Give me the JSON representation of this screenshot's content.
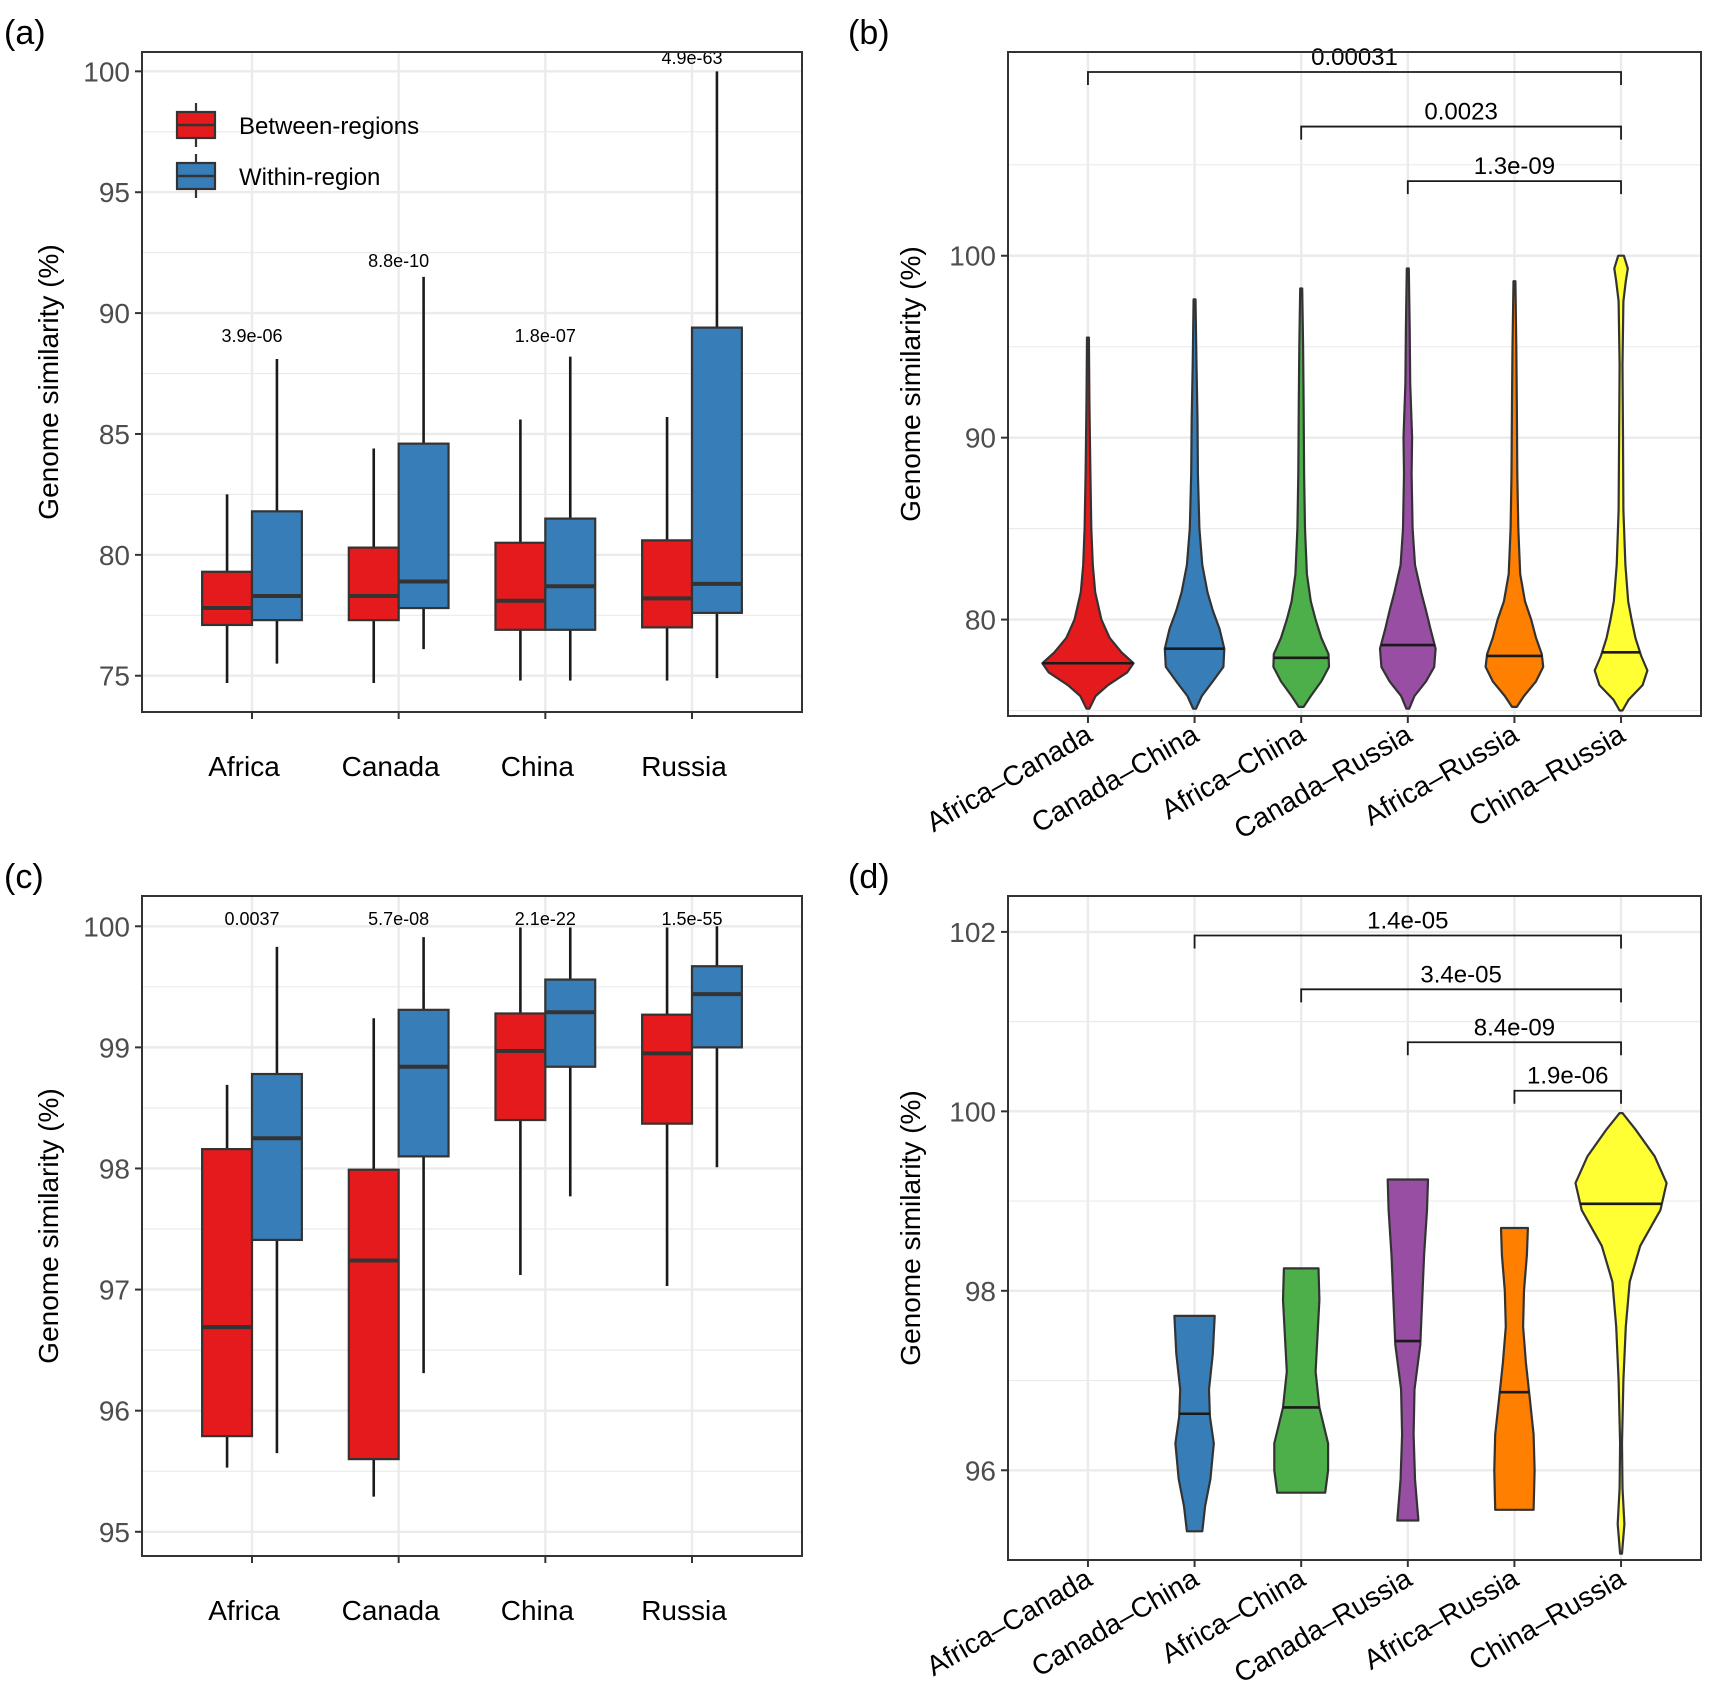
{
  "figure": {
    "colors": {
      "between": "#E41A1C",
      "within": "#377EB8",
      "violins": [
        "#E41A1C",
        "#377EB8",
        "#4DAF4A",
        "#984EA3",
        "#FF7F00",
        "#FFFF33"
      ],
      "grid": "#EBEBEB",
      "axis": "#333333"
    }
  },
  "chart_data": [
    {
      "panel": "(a)",
      "type": "box",
      "ylabel": "Genome similarity (%)",
      "ylim": [
        73.5,
        100.8
      ],
      "yticks": [
        75,
        80,
        85,
        90,
        95,
        100
      ],
      "categories": [
        "Africa",
        "Canada",
        "China",
        "Russia"
      ],
      "legend": {
        "placement": "top-left",
        "entries": [
          "Between-regions",
          "Within-region"
        ]
      },
      "series": [
        {
          "name": "Between-regions",
          "boxes": [
            {
              "min": 74.7,
              "q1": 77.1,
              "median": 77.8,
              "q3": 79.3,
              "max": 82.5
            },
            {
              "min": 74.7,
              "q1": 77.3,
              "median": 78.3,
              "q3": 80.3,
              "max": 84.4
            },
            {
              "min": 74.8,
              "q1": 76.9,
              "median": 78.1,
              "q3": 80.5,
              "max": 85.6
            },
            {
              "min": 74.8,
              "q1": 77.0,
              "median": 78.2,
              "q3": 80.6,
              "max": 85.7
            }
          ]
        },
        {
          "name": "Within-region",
          "boxes": [
            {
              "min": 75.5,
              "q1": 77.3,
              "median": 78.3,
              "q3": 81.8,
              "max": 88.1
            },
            {
              "min": 76.1,
              "q1": 77.8,
              "median": 78.9,
              "q3": 84.6,
              "max": 91.5
            },
            {
              "min": 74.8,
              "q1": 76.9,
              "median": 78.7,
              "q3": 81.5,
              "max": 88.2
            },
            {
              "min": 74.9,
              "q1": 77.6,
              "median": 78.8,
              "q3": 89.4,
              "max": 100.0
            }
          ]
        }
      ],
      "pvalues": [
        {
          "label": "3.9e-06",
          "y": 89.1
        },
        {
          "label": "8.8e-10",
          "y": 92.2
        },
        {
          "label": "1.8e-07",
          "y": 89.1
        },
        {
          "label": "4.9e-63",
          "y": 100.6
        }
      ]
    },
    {
      "panel": "(b)",
      "type": "violin",
      "ylabel": "Genome similarity (%)",
      "ylim": [
        74.7,
        111.2
      ],
      "yticks": [
        80,
        90,
        100
      ],
      "categories": [
        "Africa–Canada",
        "Canada–China",
        "Africa–China",
        "Canada–Russia",
        "Africa–Russia",
        "China–Russia"
      ],
      "violins": [
        {
          "min": 75.1,
          "max": 95.5,
          "median": 77.6,
          "profile": [
            [
              75.1,
              0.03
            ],
            [
              75.8,
              0.16
            ],
            [
              76.4,
              0.42
            ],
            [
              77.1,
              0.82
            ],
            [
              77.6,
              0.95
            ],
            [
              78.2,
              0.7
            ],
            [
              79.0,
              0.45
            ],
            [
              80.0,
              0.28
            ],
            [
              81.5,
              0.15
            ],
            [
              83.0,
              0.1
            ],
            [
              85.0,
              0.07
            ],
            [
              88.0,
              0.05
            ],
            [
              92.0,
              0.03
            ],
            [
              95.5,
              0.02
            ]
          ]
        },
        {
          "min": 75.1,
          "max": 97.6,
          "median": 78.4,
          "profile": [
            [
              75.1,
              0.03
            ],
            [
              75.8,
              0.15
            ],
            [
              76.6,
              0.38
            ],
            [
              77.4,
              0.6
            ],
            [
              78.4,
              0.62
            ],
            [
              79.5,
              0.52
            ],
            [
              80.5,
              0.38
            ],
            [
              81.5,
              0.27
            ],
            [
              83.0,
              0.16
            ],
            [
              85.0,
              0.1
            ],
            [
              88.0,
              0.07
            ],
            [
              91.0,
              0.06
            ],
            [
              94.0,
              0.04
            ],
            [
              97.6,
              0.02
            ]
          ]
        },
        {
          "min": 75.2,
          "max": 98.2,
          "median": 77.9,
          "profile": [
            [
              75.2,
              0.05
            ],
            [
              75.8,
              0.2
            ],
            [
              76.6,
              0.42
            ],
            [
              77.4,
              0.58
            ],
            [
              78.1,
              0.57
            ],
            [
              79.0,
              0.42
            ],
            [
              80.0,
              0.3
            ],
            [
              81.0,
              0.2
            ],
            [
              82.5,
              0.12
            ],
            [
              85.0,
              0.08
            ],
            [
              88.0,
              0.06
            ],
            [
              92.0,
              0.05
            ],
            [
              95.0,
              0.04
            ],
            [
              98.2,
              0.02
            ]
          ]
        },
        {
          "min": 75.1,
          "max": 99.3,
          "median": 78.6,
          "profile": [
            [
              75.1,
              0.03
            ],
            [
              75.8,
              0.14
            ],
            [
              76.6,
              0.38
            ],
            [
              77.4,
              0.55
            ],
            [
              78.4,
              0.58
            ],
            [
              79.5,
              0.47
            ],
            [
              80.5,
              0.38
            ],
            [
              81.5,
              0.28
            ],
            [
              83.0,
              0.15
            ],
            [
              85.0,
              0.1
            ],
            [
              88.0,
              0.08
            ],
            [
              90.0,
              0.09
            ],
            [
              93.0,
              0.05
            ],
            [
              96.0,
              0.04
            ],
            [
              99.3,
              0.02
            ]
          ]
        },
        {
          "min": 75.2,
          "max": 98.6,
          "median": 78.0,
          "profile": [
            [
              75.2,
              0.05
            ],
            [
              75.8,
              0.2
            ],
            [
              76.6,
              0.45
            ],
            [
              77.4,
              0.6
            ],
            [
              78.1,
              0.57
            ],
            [
              79.0,
              0.45
            ],
            [
              80.0,
              0.35
            ],
            [
              81.0,
              0.22
            ],
            [
              82.5,
              0.12
            ],
            [
              85.0,
              0.08
            ],
            [
              88.0,
              0.06
            ],
            [
              92.0,
              0.05
            ],
            [
              95.0,
              0.04
            ],
            [
              98.6,
              0.02
            ]
          ]
        },
        {
          "min": 75.0,
          "max": 100.0,
          "median": 78.2,
          "profile": [
            [
              75.0,
              0.03
            ],
            [
              75.6,
              0.16
            ],
            [
              76.4,
              0.45
            ],
            [
              77.2,
              0.55
            ],
            [
              78.0,
              0.42
            ],
            [
              79.0,
              0.3
            ],
            [
              80.0,
              0.22
            ],
            [
              81.0,
              0.15
            ],
            [
              83.0,
              0.09
            ],
            [
              86.0,
              0.05
            ],
            [
              90.0,
              0.04
            ],
            [
              94.0,
              0.03
            ],
            [
              97.5,
              0.05
            ],
            [
              98.6,
              0.1
            ],
            [
              99.3,
              0.14
            ],
            [
              100.0,
              0.06
            ]
          ]
        }
      ],
      "comparisons": [
        {
          "from": 0,
          "to": 5,
          "label": "0.00031",
          "y": 110.1
        },
        {
          "from": 2,
          "to": 5,
          "label": "0.0023",
          "y": 107.1
        },
        {
          "from": 3,
          "to": 5,
          "label": "1.3e-09",
          "y": 104.1
        }
      ]
    },
    {
      "panel": "(c)",
      "type": "box",
      "ylabel": "Genome similarity (%)",
      "ylim": [
        94.8,
        100.25
      ],
      "yticks": [
        95,
        96,
        97,
        98,
        99,
        100
      ],
      "categories": [
        "Africa",
        "Canada",
        "China",
        "Russia"
      ],
      "series": [
        {
          "name": "Between-regions",
          "boxes": [
            {
              "min": 95.53,
              "q1": 95.79,
              "median": 96.69,
              "q3": 98.16,
              "max": 98.69
            },
            {
              "min": 95.29,
              "q1": 95.6,
              "median": 97.24,
              "q3": 97.99,
              "max": 99.24
            },
            {
              "min": 97.12,
              "q1": 98.4,
              "median": 98.97,
              "q3": 99.28,
              "max": 99.99
            },
            {
              "min": 97.03,
              "q1": 98.37,
              "median": 98.95,
              "q3": 99.27,
              "max": 99.99
            }
          ]
        },
        {
          "name": "Within-region",
          "boxes": [
            {
              "min": 95.65,
              "q1": 97.41,
              "median": 98.25,
              "q3": 98.78,
              "max": 99.83
            },
            {
              "min": 96.31,
              "q1": 98.1,
              "median": 98.84,
              "q3": 99.31,
              "max": 99.91
            },
            {
              "min": 97.77,
              "q1": 98.84,
              "median": 99.29,
              "q3": 99.56,
              "max": 99.99
            },
            {
              "min": 98.01,
              "q1": 99.0,
              "median": 99.44,
              "q3": 99.67,
              "max": 100.0
            }
          ]
        }
      ],
      "pvalues": [
        {
          "label": "0.0037",
          "y": 100.07
        },
        {
          "label": "5.7e-08",
          "y": 100.07
        },
        {
          "label": "2.1e-22",
          "y": 100.07
        },
        {
          "label": "1.5e-55",
          "y": 100.07
        }
      ]
    },
    {
      "panel": "(d)",
      "type": "violin",
      "ylabel": "Genome similarity (%)",
      "ylim": [
        95.0,
        102.4
      ],
      "yticks": [
        96,
        98,
        100,
        102
      ],
      "categories": [
        "Africa–Canada",
        "Canada–China",
        "Africa–China",
        "Canada–Russia",
        "Africa–Russia",
        "China–Russia"
      ],
      "violins": [
        null,
        {
          "min": 95.32,
          "max": 97.72,
          "median": 96.63,
          "profile": [
            [
              95.32,
              0.16
            ],
            [
              95.6,
              0.22
            ],
            [
              95.9,
              0.33
            ],
            [
              96.3,
              0.4
            ],
            [
              96.6,
              0.32
            ],
            [
              96.9,
              0.3
            ],
            [
              97.3,
              0.38
            ],
            [
              97.72,
              0.42
            ]
          ]
        },
        {
          "min": 95.75,
          "max": 98.25,
          "median": 96.7,
          "profile": [
            [
              95.75,
              0.5
            ],
            [
              96.0,
              0.56
            ],
            [
              96.3,
              0.56
            ],
            [
              96.7,
              0.38
            ],
            [
              97.1,
              0.3
            ],
            [
              97.5,
              0.34
            ],
            [
              97.9,
              0.38
            ],
            [
              98.25,
              0.36
            ]
          ]
        },
        {
          "min": 95.44,
          "max": 99.24,
          "median": 97.44,
          "profile": [
            [
              95.44,
              0.22
            ],
            [
              95.9,
              0.15
            ],
            [
              96.4,
              0.12
            ],
            [
              96.9,
              0.14
            ],
            [
              97.4,
              0.26
            ],
            [
              97.9,
              0.3
            ],
            [
              98.4,
              0.34
            ],
            [
              98.9,
              0.4
            ],
            [
              99.24,
              0.42
            ]
          ]
        },
        {
          "min": 95.56,
          "max": 98.7,
          "median": 96.87,
          "profile": [
            [
              95.56,
              0.4
            ],
            [
              96.0,
              0.42
            ],
            [
              96.4,
              0.4
            ],
            [
              96.8,
              0.32
            ],
            [
              97.2,
              0.24
            ],
            [
              97.6,
              0.18
            ],
            [
              98.0,
              0.2
            ],
            [
              98.4,
              0.26
            ],
            [
              98.7,
              0.28
            ]
          ]
        },
        {
          "min": 95.07,
          "max": 99.98,
          "median": 98.97,
          "profile": [
            [
              95.07,
              0.02
            ],
            [
              95.4,
              0.07
            ],
            [
              95.8,
              0.03
            ],
            [
              96.3,
              0.02
            ],
            [
              97.0,
              0.05
            ],
            [
              97.6,
              0.1
            ],
            [
              98.1,
              0.18
            ],
            [
              98.5,
              0.4
            ],
            [
              98.9,
              0.82
            ],
            [
              99.2,
              0.95
            ],
            [
              99.5,
              0.7
            ],
            [
              99.8,
              0.3
            ],
            [
              99.98,
              0.03
            ]
          ]
        }
      ],
      "comparisons": [
        {
          "from": 1,
          "to": 5,
          "label": "1.4e-05",
          "y": 101.96
        },
        {
          "from": 2,
          "to": 5,
          "label": "3.4e-05",
          "y": 101.36
        },
        {
          "from": 3,
          "to": 5,
          "label": "8.4e-09",
          "y": 100.77
        },
        {
          "from": 4,
          "to": 5,
          "label": "1.9e-06",
          "y": 100.23
        }
      ]
    }
  ]
}
